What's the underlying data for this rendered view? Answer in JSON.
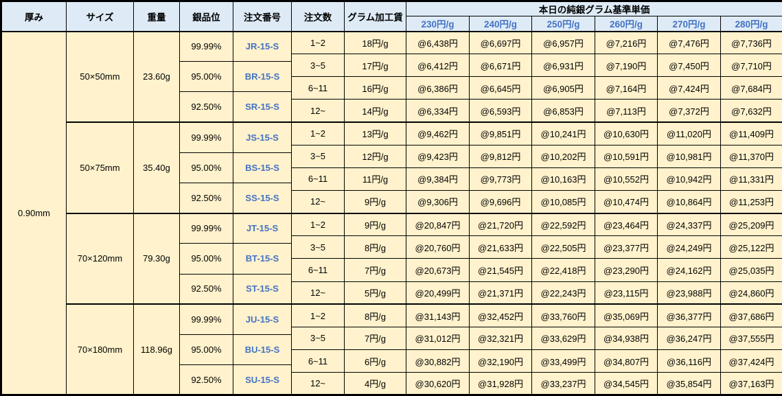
{
  "headers": {
    "thickness": "厚み",
    "size": "サイズ",
    "weight": "重量",
    "purity": "銀品位",
    "order_no": "注文番号",
    "order_qty": "注文数",
    "gram_fee": "グラム加工賃",
    "price_group": "本日の純銀グラム基準単価",
    "price_tiers": [
      "230円/g",
      "240円/g",
      "250円/g",
      "260円/g",
      "270円/g",
      "280円/g"
    ]
  },
  "thickness": "0.90mm",
  "colors": {
    "header_bg": "#DEEBF7",
    "cell_bg": "#FFF2CC",
    "accent_blue": "#4472C4",
    "border": "#000000"
  },
  "blocks": [
    {
      "size": "50×50mm",
      "weight": "23.60g",
      "purities": [
        {
          "purity": "99.99%",
          "order_no": "JR-15-S"
        },
        {
          "purity": "95.00%",
          "order_no": "BR-15-S"
        },
        {
          "purity": "92.50%",
          "order_no": "SR-15-S"
        }
      ],
      "rows": [
        {
          "qty": "1~2",
          "fee": "18円/g",
          "prices": [
            "@6,438円",
            "@6,697円",
            "@6,957円",
            "@7,216円",
            "@7,476円",
            "@7,736円"
          ]
        },
        {
          "qty": "3~5",
          "fee": "17円/g",
          "prices": [
            "@6,412円",
            "@6,671円",
            "@6,931円",
            "@7,190円",
            "@7,450円",
            "@7,710円"
          ]
        },
        {
          "qty": "6~11",
          "fee": "16円/g",
          "prices": [
            "@6,386円",
            "@6,645円",
            "@6,905円",
            "@7,164円",
            "@7,424円",
            "@7,684円"
          ]
        },
        {
          "qty": "12~",
          "fee": "14円/g",
          "prices": [
            "@6,334円",
            "@6,593円",
            "@6,853円",
            "@7,113円",
            "@7,372円",
            "@7,632円"
          ]
        }
      ]
    },
    {
      "size": "50×75mm",
      "weight": "35.40g",
      "purities": [
        {
          "purity": "99.99%",
          "order_no": "JS-15-S"
        },
        {
          "purity": "95.00%",
          "order_no": "BS-15-S"
        },
        {
          "purity": "92.50%",
          "order_no": "SS-15-S"
        }
      ],
      "rows": [
        {
          "qty": "1~2",
          "fee": "13円/g",
          "prices": [
            "@9,462円",
            "@9,851円",
            "@10,241円",
            "@10,630円",
            "@11,020円",
            "@11,409円"
          ]
        },
        {
          "qty": "3~5",
          "fee": "12円/g",
          "prices": [
            "@9,423円",
            "@9,812円",
            "@10,202円",
            "@10,591円",
            "@10,981円",
            "@11,370円"
          ]
        },
        {
          "qty": "6~11",
          "fee": "11円/g",
          "prices": [
            "@9,384円",
            "@9,773円",
            "@10,163円",
            "@10,552円",
            "@10,942円",
            "@11,331円"
          ]
        },
        {
          "qty": "12~",
          "fee": "9円/g",
          "prices": [
            "@9,306円",
            "@9,696円",
            "@10,085円",
            "@10,474円",
            "@10,864円",
            "@11,253円"
          ]
        }
      ]
    },
    {
      "size": "70×120mm",
      "weight": "79.30g",
      "purities": [
        {
          "purity": "99.99%",
          "order_no": "JT-15-S"
        },
        {
          "purity": "95.00%",
          "order_no": "BT-15-S"
        },
        {
          "purity": "92.50%",
          "order_no": "ST-15-S"
        }
      ],
      "rows": [
        {
          "qty": "1~2",
          "fee": "9円/g",
          "prices": [
            "@20,847円",
            "@21,720円",
            "@22,592円",
            "@23,464円",
            "@24,337円",
            "@25,209円"
          ]
        },
        {
          "qty": "3~5",
          "fee": "8円/g",
          "prices": [
            "@20,760円",
            "@21,633円",
            "@22,505円",
            "@23,377円",
            "@24,249円",
            "@25,122円"
          ]
        },
        {
          "qty": "6~11",
          "fee": "7円/g",
          "prices": [
            "@20,673円",
            "@21,545円",
            "@22,418円",
            "@23,290円",
            "@24,162円",
            "@25,035円"
          ]
        },
        {
          "qty": "12~",
          "fee": "5円/g",
          "prices": [
            "@20,499円",
            "@21,371円",
            "@22,243円",
            "@23,115円",
            "@23,988円",
            "@24,860円"
          ]
        }
      ]
    },
    {
      "size": "70×180mm",
      "weight": "118.96g",
      "purities": [
        {
          "purity": "99.99%",
          "order_no": "JU-15-S"
        },
        {
          "purity": "95.00%",
          "order_no": "BU-15-S"
        },
        {
          "purity": "92.50%",
          "order_no": "SU-15-S"
        }
      ],
      "rows": [
        {
          "qty": "1~2",
          "fee": "8円/g",
          "prices": [
            "@31,143円",
            "@32,452円",
            "@33,760円",
            "@35,069円",
            "@36,377円",
            "@37,686円"
          ]
        },
        {
          "qty": "3~5",
          "fee": "7円/g",
          "prices": [
            "@31,012円",
            "@32,321円",
            "@33,629円",
            "@34,938円",
            "@36,247円",
            "@37,555円"
          ]
        },
        {
          "qty": "6~11",
          "fee": "6円/g",
          "prices": [
            "@30,882円",
            "@32,190円",
            "@33,499円",
            "@34,807円",
            "@36,116円",
            "@37,424円"
          ]
        },
        {
          "qty": "12~",
          "fee": "4円/g",
          "prices": [
            "@30,620円",
            "@31,928円",
            "@33,237円",
            "@34,545円",
            "@35,854円",
            "@37,163円"
          ]
        }
      ]
    }
  ]
}
